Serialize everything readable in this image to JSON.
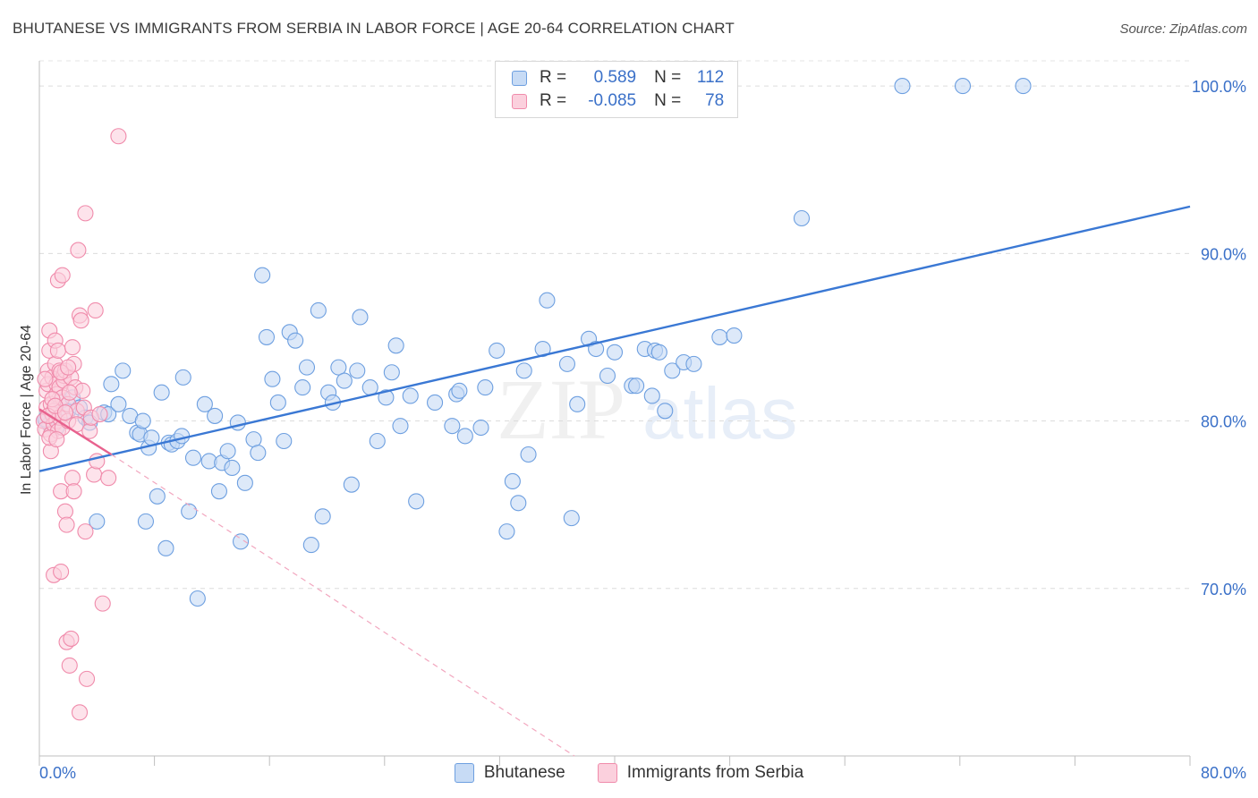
{
  "title": "BHUTANESE VS IMMIGRANTS FROM SERBIA IN LABOR FORCE | AGE 20-64 CORRELATION CHART",
  "source": "Source: ZipAtlas.com",
  "watermark": {
    "zip": "ZIP",
    "atlas": "atlas"
  },
  "legend": {
    "rows": [
      {
        "r_label": "R =",
        "r_value": "0.589",
        "n_label": "N =",
        "n_value": "112",
        "color": "#6d9fe0",
        "fill": "#c7dbf5"
      },
      {
        "r_label": "R =",
        "r_value": "-0.085",
        "n_label": "N =",
        "n_value": "78",
        "color": "#f08bab",
        "fill": "#fbd0dd"
      }
    ]
  },
  "bottom_legend": [
    "Bhutanese",
    "Immigrants from Serbia"
  ],
  "chart_data": {
    "type": "scatter",
    "title": "BHUTANESE VS IMMIGRANTS FROM SERBIA IN LABOR FORCE | AGE 20-64 CORRELATION CHART",
    "xlabel": "",
    "ylabel": "In Labor Force | Age 20-64",
    "xlim": [
      0,
      80
    ],
    "ylim": [
      60,
      101.5
    ],
    "x_tick_labels": [
      "0.0%",
      "80.0%"
    ],
    "y_ticks": [
      70,
      80,
      90,
      100
    ],
    "y_tick_labels": [
      "70.0%",
      "80.0%",
      "90.0%",
      "100.0%"
    ],
    "grid": true,
    "legend_position": "top-center",
    "series": [
      {
        "name": "Bhutanese",
        "color": "#3a78d4",
        "fill": "#c7dbf5",
        "trendline": {
          "x": [
            0,
            80
          ],
          "y": [
            77.0,
            92.8
          ],
          "style": "solid"
        },
        "points": [
          [
            0.5,
            80.0
          ],
          [
            0.7,
            79.8
          ],
          [
            1.0,
            80.2
          ],
          [
            1.2,
            79.6
          ],
          [
            1.5,
            81.2
          ],
          [
            2.0,
            80.6
          ],
          [
            2.3,
            81.4
          ],
          [
            2.8,
            80.8
          ],
          [
            3.2,
            80.2
          ],
          [
            3.5,
            79.9
          ],
          [
            4.0,
            74.0
          ],
          [
            4.5,
            80.5
          ],
          [
            4.8,
            80.4
          ],
          [
            5.0,
            82.2
          ],
          [
            5.5,
            81.0
          ],
          [
            5.8,
            83.0
          ],
          [
            6.3,
            80.3
          ],
          [
            6.8,
            79.3
          ],
          [
            7.0,
            79.2
          ],
          [
            7.2,
            80.0
          ],
          [
            7.4,
            74.0
          ],
          [
            7.6,
            78.4
          ],
          [
            7.8,
            79.0
          ],
          [
            8.2,
            75.5
          ],
          [
            8.5,
            81.7
          ],
          [
            8.8,
            72.4
          ],
          [
            9.0,
            78.7
          ],
          [
            9.2,
            78.6
          ],
          [
            9.6,
            78.8
          ],
          [
            9.9,
            79.1
          ],
          [
            10.0,
            82.6
          ],
          [
            10.4,
            74.6
          ],
          [
            10.7,
            77.8
          ],
          [
            11.0,
            69.4
          ],
          [
            11.5,
            81.0
          ],
          [
            11.8,
            77.6
          ],
          [
            12.2,
            80.3
          ],
          [
            12.5,
            75.8
          ],
          [
            12.7,
            77.5
          ],
          [
            13.1,
            78.2
          ],
          [
            13.4,
            77.2
          ],
          [
            13.8,
            79.9
          ],
          [
            14.0,
            72.8
          ],
          [
            14.3,
            76.3
          ],
          [
            14.9,
            78.9
          ],
          [
            15.2,
            78.1
          ],
          [
            15.5,
            88.7
          ],
          [
            15.8,
            85.0
          ],
          [
            16.2,
            82.5
          ],
          [
            16.6,
            81.1
          ],
          [
            17.0,
            78.8
          ],
          [
            17.4,
            85.3
          ],
          [
            17.8,
            84.8
          ],
          [
            18.3,
            82.0
          ],
          [
            18.6,
            83.2
          ],
          [
            18.9,
            72.6
          ],
          [
            19.4,
            86.6
          ],
          [
            19.7,
            74.3
          ],
          [
            20.1,
            81.7
          ],
          [
            20.4,
            81.1
          ],
          [
            20.8,
            83.2
          ],
          [
            21.2,
            82.4
          ],
          [
            21.7,
            76.2
          ],
          [
            22.1,
            83.0
          ],
          [
            22.3,
            86.2
          ],
          [
            23.0,
            82.0
          ],
          [
            23.5,
            78.8
          ],
          [
            24.1,
            81.4
          ],
          [
            24.5,
            82.9
          ],
          [
            24.8,
            84.5
          ],
          [
            25.1,
            79.7
          ],
          [
            25.8,
            81.5
          ],
          [
            26.2,
            75.2
          ],
          [
            27.5,
            81.1
          ],
          [
            28.7,
            79.7
          ],
          [
            29.0,
            81.6
          ],
          [
            29.2,
            81.8
          ],
          [
            29.6,
            79.1
          ],
          [
            30.7,
            79.6
          ],
          [
            31.0,
            82.0
          ],
          [
            31.8,
            84.2
          ],
          [
            32.5,
            73.4
          ],
          [
            32.9,
            76.4
          ],
          [
            33.3,
            75.1
          ],
          [
            33.7,
            83.0
          ],
          [
            34.0,
            78.0
          ],
          [
            35.0,
            84.3
          ],
          [
            35.3,
            87.2
          ],
          [
            36.7,
            83.4
          ],
          [
            37.0,
            74.2
          ],
          [
            37.4,
            81.0
          ],
          [
            38.2,
            84.9
          ],
          [
            38.7,
            84.3
          ],
          [
            39.5,
            82.7
          ],
          [
            40.0,
            84.1
          ],
          [
            41.2,
            82.1
          ],
          [
            41.5,
            82.1
          ],
          [
            42.1,
            84.3
          ],
          [
            42.6,
            81.5
          ],
          [
            42.8,
            84.2
          ],
          [
            43.1,
            84.1
          ],
          [
            43.5,
            80.6
          ],
          [
            44.0,
            83.0
          ],
          [
            44.8,
            83.5
          ],
          [
            45.5,
            83.4
          ],
          [
            47.3,
            85.0
          ],
          [
            48.3,
            85.1
          ],
          [
            53.0,
            92.1
          ],
          [
            60.0,
            100.0
          ],
          [
            64.2,
            100.0
          ],
          [
            68.4,
            100.0
          ],
          [
            0.4,
            80.1
          ]
        ]
      },
      {
        "name": "Immigrants from Serbia",
        "color": "#e8628e",
        "fill": "#fbd0dd",
        "trendline": {
          "x": [
            0,
            5.0
          ],
          "y": [
            80.7,
            78.0
          ],
          "style": "solid",
          "extended": {
            "x": [
              5.0,
              37.2
            ],
            "y": [
              78.0,
              60.0
            ],
            "style": "dashed"
          }
        },
        "points": [
          [
            0.3,
            80.0
          ],
          [
            0.4,
            79.5
          ],
          [
            0.5,
            81.8
          ],
          [
            0.5,
            80.8
          ],
          [
            0.6,
            83.0
          ],
          [
            0.6,
            82.2
          ],
          [
            0.7,
            85.4
          ],
          [
            0.7,
            84.2
          ],
          [
            0.8,
            81.0
          ],
          [
            0.8,
            79.2
          ],
          [
            0.8,
            78.2
          ],
          [
            0.9,
            82.6
          ],
          [
            0.9,
            80.4
          ],
          [
            1.0,
            70.8
          ],
          [
            1.0,
            79.8
          ],
          [
            1.0,
            80.6
          ],
          [
            1.1,
            84.8
          ],
          [
            1.1,
            83.4
          ],
          [
            1.2,
            82.2
          ],
          [
            1.2,
            81.6
          ],
          [
            1.2,
            80.0
          ],
          [
            1.3,
            79.4
          ],
          [
            1.3,
            88.4
          ],
          [
            1.3,
            84.2
          ],
          [
            1.4,
            83.0
          ],
          [
            1.4,
            82.0
          ],
          [
            1.4,
            80.2
          ],
          [
            1.5,
            71.0
          ],
          [
            1.5,
            75.8
          ],
          [
            1.6,
            88.7
          ],
          [
            1.6,
            81.4
          ],
          [
            1.6,
            79.6
          ],
          [
            1.7,
            82.7
          ],
          [
            1.7,
            82.4
          ],
          [
            1.8,
            83.0
          ],
          [
            1.8,
            74.6
          ],
          [
            1.9,
            73.8
          ],
          [
            1.9,
            66.8
          ],
          [
            2.0,
            81.0
          ],
          [
            2.0,
            80.0
          ],
          [
            2.1,
            65.4
          ],
          [
            2.2,
            67.0
          ],
          [
            2.2,
            82.6
          ],
          [
            2.3,
            84.4
          ],
          [
            2.3,
            76.6
          ],
          [
            2.4,
            75.8
          ],
          [
            2.4,
            83.4
          ],
          [
            2.5,
            82.0
          ],
          [
            2.6,
            80.6
          ],
          [
            2.6,
            79.8
          ],
          [
            2.7,
            90.2
          ],
          [
            2.8,
            62.6
          ],
          [
            2.8,
            86.3
          ],
          [
            2.9,
            86.0
          ],
          [
            3.0,
            81.8
          ],
          [
            3.1,
            80.8
          ],
          [
            3.2,
            92.4
          ],
          [
            3.2,
            73.4
          ],
          [
            3.3,
            64.6
          ],
          [
            3.5,
            79.4
          ],
          [
            3.6,
            80.2
          ],
          [
            3.8,
            76.8
          ],
          [
            3.9,
            86.6
          ],
          [
            4.0,
            77.6
          ],
          [
            4.2,
            80.4
          ],
          [
            4.4,
            69.1
          ],
          [
            4.8,
            76.6
          ],
          [
            5.5,
            97.0
          ],
          [
            0.6,
            80.3
          ],
          [
            0.9,
            81.3
          ],
          [
            1.1,
            80.9
          ],
          [
            1.5,
            82.9
          ],
          [
            1.8,
            80.5
          ],
          [
            2.1,
            81.7
          ],
          [
            0.4,
            82.5
          ],
          [
            0.7,
            79.0
          ],
          [
            1.2,
            78.9
          ],
          [
            2.0,
            83.2
          ]
        ]
      }
    ]
  }
}
